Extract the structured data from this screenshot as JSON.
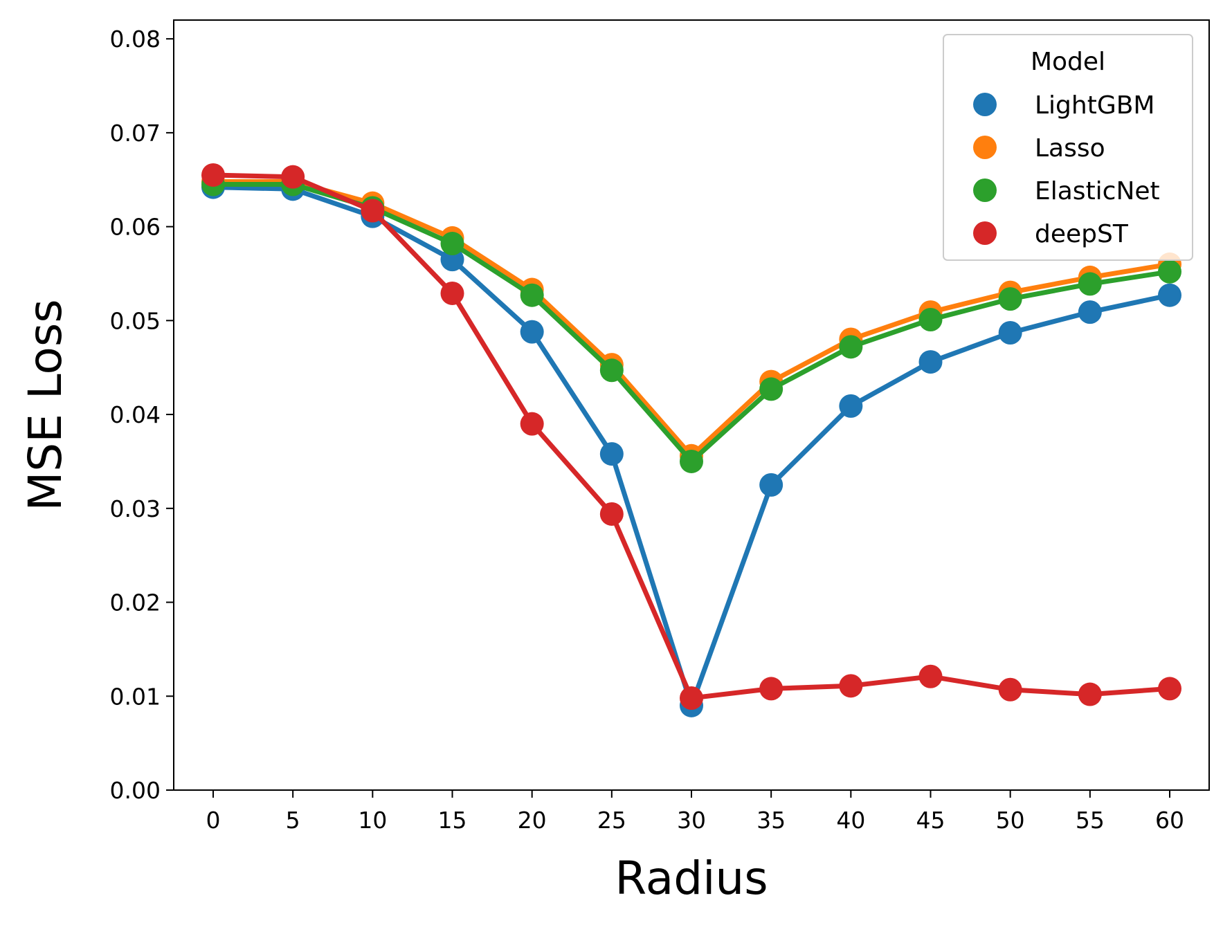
{
  "chart_data": {
    "type": "line",
    "xlabel": "Radius",
    "ylabel": "MSE Loss",
    "x": [
      0,
      5,
      10,
      15,
      20,
      25,
      30,
      35,
      40,
      45,
      50,
      55,
      60
    ],
    "xticks": [
      "0",
      "5",
      "10",
      "15",
      "20",
      "25",
      "30",
      "35",
      "40",
      "45",
      "50",
      "55",
      "60"
    ],
    "ylim": [
      0,
      0.082
    ],
    "yticks": [
      "0.00",
      "0.01",
      "0.02",
      "0.03",
      "0.04",
      "0.05",
      "0.06",
      "0.07",
      "0.08"
    ],
    "grid": false,
    "legend": {
      "title": "Model",
      "position": "top-right"
    },
    "series": [
      {
        "name": "LightGBM",
        "color": "#1f77b4",
        "values": [
          0.0642,
          0.064,
          0.0611,
          0.0565,
          0.0488,
          0.0358,
          0.009,
          0.0325,
          0.0409,
          0.0456,
          0.0487,
          0.0509,
          0.0527
        ]
      },
      {
        "name": "Lasso",
        "color": "#ff7f0e",
        "values": [
          0.0648,
          0.0648,
          0.0625,
          0.0588,
          0.0533,
          0.0453,
          0.0356,
          0.0435,
          0.048,
          0.0509,
          0.053,
          0.0546,
          0.056
        ]
      },
      {
        "name": "ElasticNet",
        "color": "#2ca02c",
        "values": [
          0.0645,
          0.0645,
          0.062,
          0.0582,
          0.0527,
          0.0447,
          0.035,
          0.0427,
          0.0472,
          0.0501,
          0.0523,
          0.0539,
          0.0552
        ]
      },
      {
        "name": "deepST",
        "color": "#d62728",
        "values": [
          0.0655,
          0.0653,
          0.0617,
          0.0529,
          0.039,
          0.0294,
          0.0098,
          0.0108,
          0.0111,
          0.0121,
          0.0107,
          0.0102,
          0.0108
        ]
      }
    ]
  }
}
